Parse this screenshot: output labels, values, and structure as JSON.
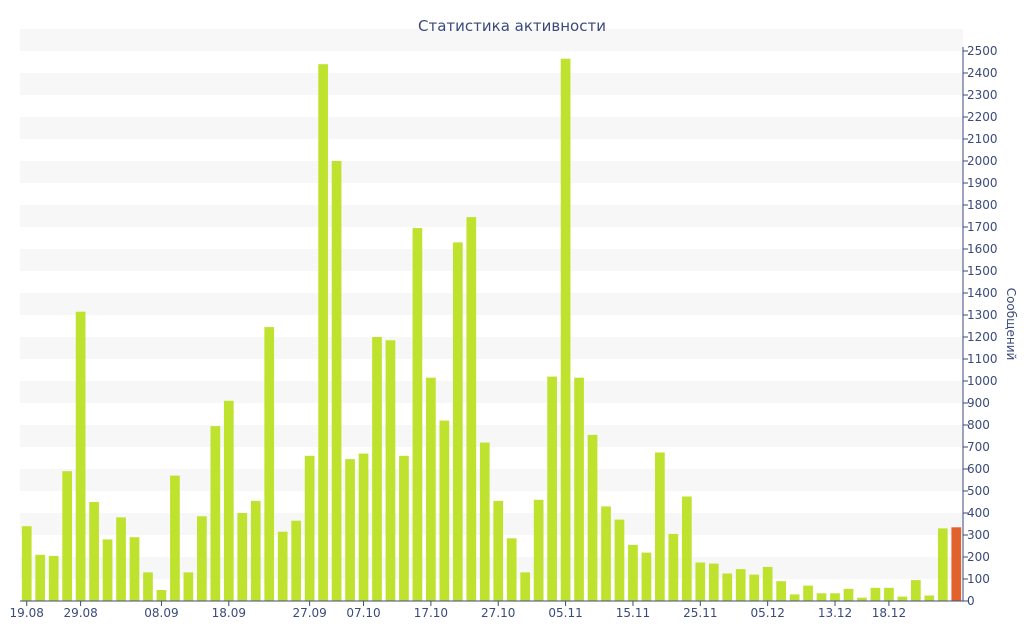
{
  "chart_data": {
    "type": "bar",
    "title": "Статистика активности",
    "ylabel": "Сообщений",
    "xlabel": "",
    "ylim": [
      0,
      2500
    ],
    "y_tick_step": 100,
    "y_axis_position": "right",
    "x_tick_labels": [
      "19.08",
      "29.08",
      "08.09",
      "18.09",
      "27.09",
      "07.10",
      "17.10",
      "27.10",
      "05.11",
      "15.11",
      "25.11",
      "05.12",
      "13.12",
      "18.12"
    ],
    "x_tick_label_indices": [
      0,
      4,
      10,
      15,
      21,
      25,
      30,
      35,
      40,
      45,
      50,
      55,
      60,
      64
    ],
    "values": [
      340,
      210,
      205,
      590,
      1315,
      450,
      280,
      380,
      290,
      130,
      50,
      570,
      130,
      385,
      795,
      910,
      400,
      455,
      1245,
      315,
      365,
      660,
      2440,
      2000,
      645,
      670,
      1200,
      1185,
      660,
      1695,
      1015,
      820,
      1630,
      1745,
      720,
      455,
      285,
      130,
      460,
      1020,
      2465,
      1015,
      755,
      430,
      370,
      255,
      220,
      675,
      305,
      475,
      175,
      170,
      125,
      145,
      120,
      155,
      90,
      30,
      70,
      35,
      35,
      55,
      15,
      60,
      60,
      20,
      95,
      25,
      330,
      335
    ],
    "highlight_index": 69,
    "colors": {
      "bar": "#bfe22e",
      "highlight": "#e2622d",
      "band": "#f7f7f7",
      "axis": "#3b4a7a"
    },
    "grid": "horizontal bands"
  }
}
